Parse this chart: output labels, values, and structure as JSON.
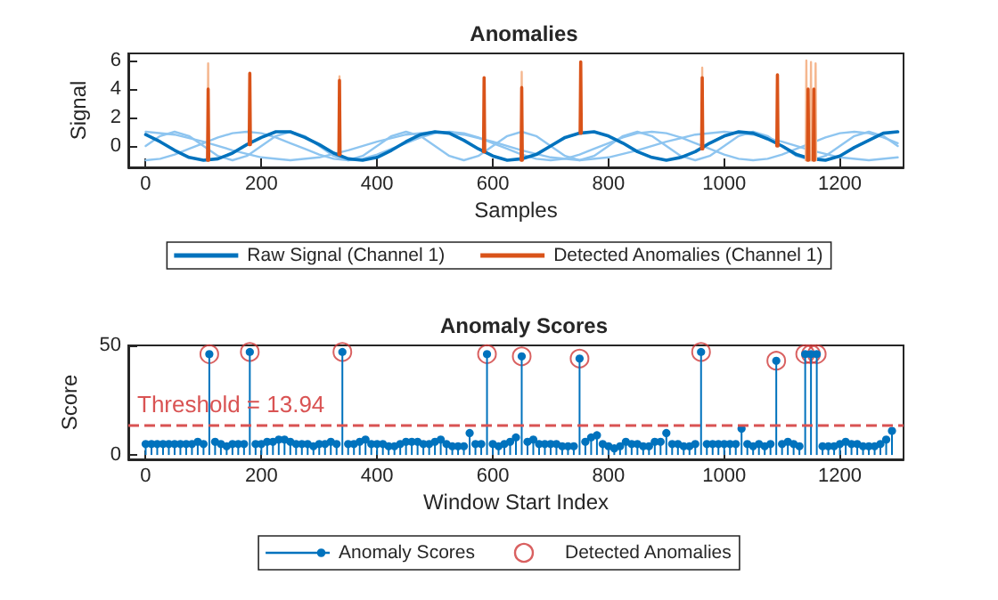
{
  "chart_data": [
    {
      "type": "line",
      "title": "Anomalies",
      "xlabel": "Samples",
      "ylabel": "Signal",
      "xlim": [
        -30,
        1310
      ],
      "xticks": [
        0,
        200,
        400,
        600,
        800,
        1000,
        1200
      ],
      "ylim": [
        -1.5,
        6.5
      ],
      "yticks": [
        0,
        2,
        4,
        6
      ],
      "grid": false,
      "legend": "bottom",
      "marker": "none",
      "line_style": "solid",
      "series": [
        {
          "color": "#8ec5f0",
          "x": [
            0,
            50,
            100,
            150,
            200,
            250,
            300,
            350,
            400,
            450,
            500,
            550,
            600,
            650,
            700,
            750,
            800,
            850,
            900,
            950,
            1000,
            1050,
            1100,
            1150,
            1200,
            1250,
            1300
          ],
          "values": [
            1,
            0.8,
            0.3,
            -0.3,
            -0.8,
            -1,
            -0.8,
            -0.3,
            0.3,
            0.8,
            1,
            0.8,
            0.3,
            -0.3,
            -0.8,
            -1,
            -0.8,
            -0.3,
            0.3,
            0.8,
            1,
            0.8,
            0.3,
            -0.3,
            -0.8,
            -1,
            -0.8
          ]
        },
        {
          "color": "#8ec5f0",
          "x": [
            0,
            25,
            50,
            75,
            100,
            125,
            150,
            175,
            200,
            225,
            250,
            275,
            300,
            325,
            350,
            375,
            400,
            425,
            450,
            475,
            500,
            525,
            550,
            575,
            600,
            625,
            650,
            675,
            700,
            725,
            750,
            775,
            800,
            825,
            850,
            875,
            900,
            925,
            950,
            975,
            1000,
            1025,
            1050,
            1075,
            1100,
            1125,
            1150,
            1175,
            1200,
            1225,
            1250,
            1275,
            1300
          ],
          "values": [
            0,
            0.7,
            1,
            0.7,
            0,
            -0.7,
            -1,
            -0.7,
            0,
            0.7,
            1,
            0.7,
            0,
            -0.7,
            -1,
            -0.7,
            0,
            0.7,
            1,
            0.7,
            0,
            -0.7,
            -1,
            -0.7,
            0,
            0.7,
            1,
            0.7,
            0,
            -0.7,
            -1,
            -0.7,
            0,
            0.7,
            1,
            0.7,
            0,
            -0.7,
            -1,
            -0.7,
            0,
            0.7,
            1,
            0.7,
            0,
            -0.7,
            -1,
            -0.7,
            0,
            0.7,
            1,
            0.7,
            0
          ]
        },
        {
          "color": "#8ec5f0",
          "x": [
            0,
            25,
            50,
            75,
            100,
            125,
            150,
            175,
            200,
            225,
            250,
            275,
            300,
            325,
            350,
            375,
            400,
            425,
            450,
            475,
            500,
            525,
            550,
            575,
            600,
            625,
            650,
            675,
            700,
            725,
            750,
            775,
            800,
            825,
            850,
            875,
            900,
            925,
            950,
            975,
            1000,
            1025,
            1050,
            1075,
            1100,
            1125,
            1150,
            1175,
            1200,
            1225,
            1250,
            1275,
            1300
          ],
          "values": [
            -1,
            -0.9,
            -0.6,
            -0.2,
            0.2,
            0.6,
            0.9,
            1,
            0.9,
            0.6,
            0.2,
            -0.2,
            -0.6,
            -0.9,
            -1,
            -0.9,
            -0.6,
            -0.2,
            0.2,
            0.6,
            0.9,
            1,
            0.9,
            0.6,
            0.2,
            -0.2,
            -0.6,
            -0.9,
            -1,
            -0.9,
            -0.6,
            -0.2,
            0.2,
            0.6,
            0.9,
            1,
            0.9,
            0.6,
            0.2,
            -0.2,
            -0.6,
            -0.9,
            -1,
            -0.9,
            -0.6,
            -0.2,
            0.2,
            0.6,
            0.9,
            1,
            0.9,
            0.6,
            0.2
          ]
        },
        {
          "name": "Raw Signal (Channel 1)",
          "color": "#0072bd",
          "x": [
            0,
            25,
            50,
            75,
            100,
            125,
            150,
            175,
            200,
            225,
            250,
            275,
            300,
            325,
            350,
            375,
            400,
            425,
            450,
            475,
            500,
            525,
            550,
            575,
            600,
            625,
            650,
            675,
            700,
            725,
            750,
            775,
            800,
            825,
            850,
            875,
            900,
            925,
            950,
            975,
            1000,
            1025,
            1050,
            1075,
            1100,
            1125,
            1150,
            1175,
            1200,
            1225,
            1250,
            1275,
            1300
          ],
          "values": [
            0.8,
            0.3,
            -0.3,
            -0.8,
            -1,
            -0.9,
            -0.5,
            0.1,
            0.6,
            1,
            1,
            0.6,
            0.1,
            -0.5,
            -0.9,
            -1,
            -0.8,
            -0.3,
            0.3,
            0.8,
            1,
            0.9,
            0.4,
            -0.2,
            -0.7,
            -1,
            -0.9,
            -0.6,
            0,
            0.6,
            0.9,
            1,
            0.7,
            0.2,
            -0.4,
            -0.8,
            -1,
            -0.8,
            -0.4,
            0.2,
            0.7,
            1,
            0.9,
            0.5,
            0,
            -0.6,
            -0.9,
            -1,
            -0.7,
            -0.1,
            0.4,
            0.9,
            1
          ]
        },
        {
          "color": "#f5b78f",
          "x": [
            107,
            108,
            109,
            110,
            334,
            335,
            336,
            337,
            649,
            650,
            651,
            652,
            961,
            962,
            963,
            964,
            1141,
            1142,
            1143,
            1144,
            1149,
            1150,
            1151,
            1152,
            1157,
            1158,
            1159
          ],
          "values": [
            -1,
            5.8,
            -1,
            null,
            -0.6,
            4.9,
            -0.6,
            null,
            -1,
            5.2,
            -1,
            null,
            -0.2,
            5.5,
            -0.2,
            null,
            -1,
            6,
            -1,
            null,
            -1,
            5.9,
            -1,
            null,
            -1,
            5.8,
            -1
          ]
        },
        {
          "name": "Detected Anomalies (Channel 1)",
          "color": "#d95319",
          "x": [
            107,
            108,
            109,
            110,
            179,
            180,
            181,
            182,
            334,
            335,
            336,
            337,
            584,
            585,
            586,
            587,
            649,
            650,
            651,
            652,
            751,
            752,
            753,
            754,
            961,
            962,
            963,
            964,
            1091,
            1092,
            1093,
            1094,
            1144,
            1145,
            1146,
            1147,
            1154,
            1155,
            1156
          ],
          "values": [
            -1,
            4,
            -1,
            null,
            0.1,
            5.1,
            0.1,
            null,
            -0.6,
            4.6,
            -0.6,
            null,
            -0.4,
            4.8,
            -0.4,
            null,
            -1,
            4.1,
            -1,
            null,
            0.9,
            5.9,
            0.9,
            null,
            -0.2,
            4.8,
            -0.2,
            null,
            0,
            5,
            0,
            null,
            -1,
            4,
            -1,
            null,
            -1,
            4,
            -1
          ]
        }
      ]
    },
    {
      "type": "lollipop",
      "title": "Anomaly Scores",
      "xlabel": "Window Start Index",
      "ylabel": "Score",
      "xlim": [
        -30,
        1310
      ],
      "xticks": [
        0,
        200,
        400,
        600,
        800,
        1000,
        1200
      ],
      "ylim": [
        -2,
        50
      ],
      "yticks": [
        0,
        50
      ],
      "grid": false,
      "legend": "bottom",
      "marker": "circle",
      "ref_lines": [
        {
          "axis": "y",
          "value": 13.94,
          "label": "Threshold = 13.94",
          "color": "#d95353",
          "line_style": "dashed"
        }
      ],
      "series": [
        {
          "name": "Anomaly Scores",
          "color": "#0072bd",
          "x": [
            0,
            10,
            20,
            30,
            40,
            50,
            60,
            70,
            80,
            90,
            100,
            110,
            120,
            130,
            140,
            150,
            160,
            170,
            180,
            190,
            200,
            210,
            220,
            230,
            240,
            250,
            260,
            270,
            280,
            290,
            300,
            310,
            320,
            330,
            340,
            350,
            360,
            370,
            380,
            390,
            400,
            410,
            420,
            430,
            440,
            450,
            460,
            470,
            480,
            490,
            500,
            510,
            520,
            530,
            540,
            550,
            560,
            570,
            580,
            590,
            600,
            610,
            620,
            630,
            640,
            650,
            660,
            670,
            680,
            690,
            700,
            710,
            720,
            730,
            740,
            750,
            760,
            770,
            780,
            790,
            800,
            810,
            820,
            830,
            840,
            850,
            860,
            870,
            880,
            890,
            900,
            910,
            920,
            930,
            940,
            950,
            960,
            970,
            980,
            990,
            1000,
            1010,
            1020,
            1030,
            1040,
            1050,
            1060,
            1070,
            1080,
            1090,
            1100,
            1110,
            1120,
            1130,
            1140,
            1150,
            1160,
            1170,
            1180,
            1190,
            1200,
            1210,
            1220,
            1230,
            1240,
            1250,
            1260,
            1270,
            1280,
            1290
          ],
          "values": [
            5,
            5,
            5,
            5,
            5,
            5,
            5,
            5,
            5,
            6,
            5,
            46,
            6,
            5,
            4,
            5,
            5,
            5,
            47,
            5,
            5,
            6,
            6,
            7,
            7,
            6,
            5,
            5,
            5,
            4,
            5,
            5,
            6,
            5,
            47,
            5,
            5,
            6,
            7,
            5,
            5,
            5,
            4,
            4,
            5,
            6,
            6,
            6,
            5,
            5,
            6,
            7,
            5,
            4,
            4,
            4,
            10,
            5,
            5,
            46,
            5,
            4,
            5,
            6,
            8,
            45,
            6,
            7,
            5,
            5,
            5,
            5,
            4,
            4,
            4,
            44,
            6,
            8,
            9,
            5,
            4,
            3,
            4,
            6,
            5,
            5,
            4,
            4,
            6,
            6,
            10,
            5,
            5,
            4,
            4,
            5,
            47,
            5,
            5,
            5,
            5,
            5,
            5,
            12,
            5,
            4,
            5,
            4,
            5,
            43,
            5,
            6,
            5,
            4,
            46,
            46,
            46,
            4,
            4,
            4,
            5,
            6,
            5,
            5,
            4,
            4,
            4,
            5,
            7,
            11
          ]
        },
        {
          "name": "Detected Anomalies",
          "type": "scatter",
          "color": "#d03a3a",
          "x": [
            110,
            180,
            340,
            590,
            650,
            750,
            960,
            1090,
            1140,
            1150,
            1160
          ],
          "values": [
            46,
            47,
            47,
            46,
            45,
            44,
            47,
            43,
            46,
            46,
            46
          ]
        }
      ]
    }
  ]
}
